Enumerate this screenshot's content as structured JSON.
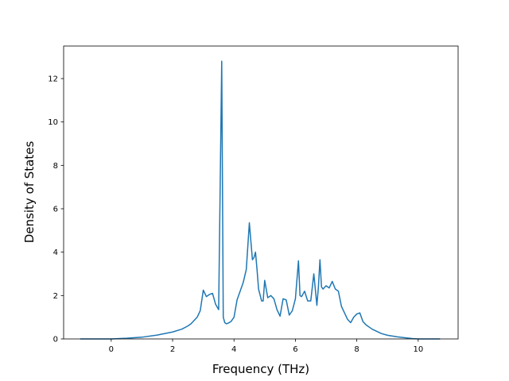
{
  "chart_data": {
    "type": "line",
    "title": "",
    "xlabel": "Frequency (THz)",
    "ylabel": "Density of States",
    "xlim": [
      -1.55,
      11.3
    ],
    "ylim": [
      0,
      13.5
    ],
    "xticks": [
      0,
      2,
      4,
      6,
      8,
      10
    ],
    "yticks": [
      0,
      2,
      4,
      6,
      8,
      10,
      12
    ],
    "grid": false,
    "legend": "none",
    "colors": {
      "line": "#1f77b4",
      "axes": "#000000",
      "background": "#ffffff"
    },
    "series": [
      {
        "x": [
          -1.0,
          0.0,
          0.5,
          1.0,
          1.5,
          2.0,
          2.3,
          2.5,
          2.6,
          2.7,
          2.8,
          2.9,
          3.0,
          3.1,
          3.2,
          3.3,
          3.4,
          3.5,
          3.6,
          3.65,
          3.7,
          3.75,
          3.8,
          3.9,
          4.0,
          4.1,
          4.2,
          4.3,
          4.4,
          4.5,
          4.55,
          4.6,
          4.65,
          4.7,
          4.75,
          4.8,
          4.9,
          4.95,
          5.0,
          5.1,
          5.2,
          5.3,
          5.4,
          5.5,
          5.6,
          5.7,
          5.8,
          5.9,
          6.0,
          6.1,
          6.15,
          6.2,
          6.3,
          6.4,
          6.5,
          6.6,
          6.7,
          6.75,
          6.8,
          6.85,
          6.9,
          7.0,
          7.1,
          7.2,
          7.3,
          7.4,
          7.5,
          7.6,
          7.7,
          7.8,
          7.9,
          8.0,
          8.1,
          8.2,
          8.3,
          8.5,
          8.8,
          9.0,
          9.3,
          9.6,
          9.8,
          10.0,
          10.7
        ],
        "y": [
          0,
          0,
          0.03,
          0.08,
          0.18,
          0.32,
          0.45,
          0.6,
          0.7,
          0.85,
          1.0,
          1.3,
          2.25,
          1.95,
          2.05,
          2.1,
          1.6,
          1.35,
          12.8,
          1.0,
          0.75,
          0.7,
          0.72,
          0.8,
          1.0,
          1.8,
          2.2,
          2.6,
          3.2,
          5.35,
          4.5,
          3.65,
          3.75,
          4.0,
          3.2,
          2.3,
          1.75,
          1.75,
          2.7,
          1.9,
          2.0,
          1.85,
          1.35,
          1.05,
          1.85,
          1.8,
          1.1,
          1.3,
          1.85,
          3.6,
          2.0,
          1.95,
          2.2,
          1.75,
          1.75,
          3.0,
          1.55,
          2.4,
          3.65,
          2.4,
          2.3,
          2.45,
          2.35,
          2.65,
          2.3,
          2.2,
          1.5,
          1.2,
          0.9,
          0.75,
          1.0,
          1.15,
          1.2,
          0.8,
          0.65,
          0.45,
          0.25,
          0.17,
          0.1,
          0.05,
          0.02,
          0.0,
          0.0
        ]
      }
    ]
  }
}
